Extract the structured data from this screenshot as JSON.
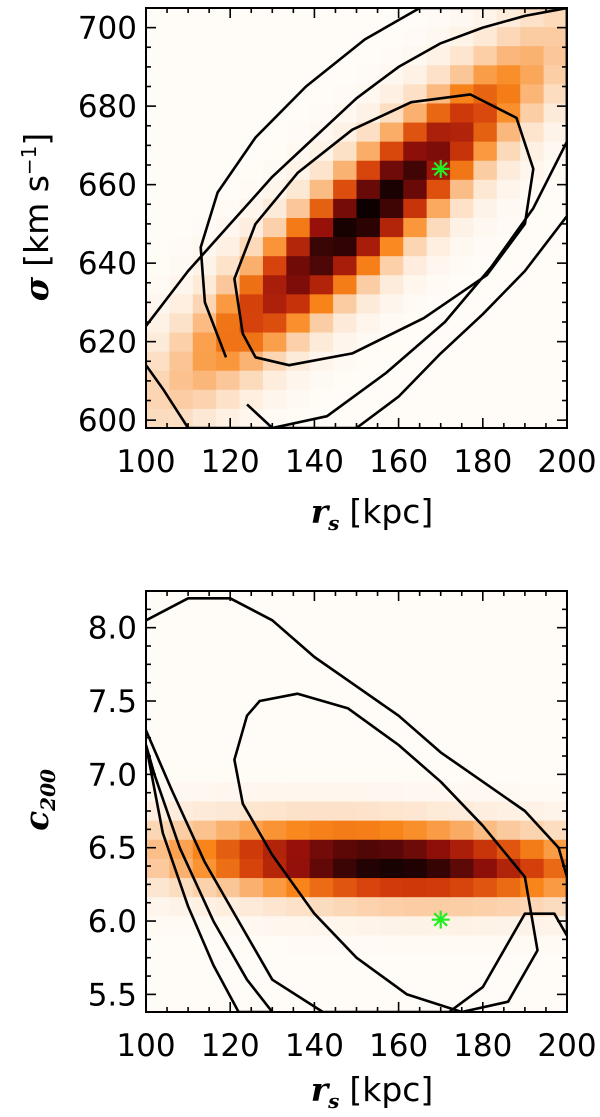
{
  "chart_data": [
    {
      "type": "heatmap",
      "id": "sigma-vs-rs",
      "description": "Likelihood map with 1, 2 and 3 sigma contours",
      "xlabel_main": "r",
      "xlabel_sub": "s",
      "xlabel_unit": "[kpc]",
      "ylabel_main": "σ",
      "ylabel_unit": "[km s",
      "ylabel_sup": "−1",
      "ylabel_close": "]",
      "xlim": [
        100,
        200
      ],
      "ylim": [
        598,
        705
      ],
      "xticks": [
        100,
        120,
        140,
        160,
        180,
        200
      ],
      "xtick_labels": [
        "100",
        "120",
        "140",
        "160",
        "180",
        "200"
      ],
      "yticks": [
        600,
        620,
        640,
        660,
        680,
        700
      ],
      "ytick_labels": [
        "600",
        "620",
        "640",
        "660",
        "680",
        "700"
      ],
      "peak": [
        152,
        652
      ],
      "axis_a": 55,
      "axis_b": 12,
      "tilt": 0.92,
      "marker": {
        "x": 170,
        "y": 664,
        "color": "#22ee22",
        "symbol": "asterisk"
      },
      "contours": [
        [
          [
            100,
            624
          ],
          [
            110,
            638
          ],
          [
            120,
            650
          ],
          [
            130,
            662
          ],
          [
            140,
            672
          ],
          [
            150,
            682
          ],
          [
            160,
            690
          ],
          [
            170,
            696
          ],
          [
            180,
            700
          ],
          [
            190,
            703
          ],
          [
            200,
            705
          ],
          [
            200,
            652
          ],
          [
            190,
            638
          ],
          [
            180,
            627
          ],
          [
            170,
            617
          ],
          [
            160,
            606
          ],
          [
            150,
            598
          ],
          [
            110,
            598
          ],
          [
            104,
            608
          ],
          [
            100,
            614
          ]
        ],
        [
          [
            119,
            616
          ],
          [
            114,
            630
          ],
          [
            113,
            644
          ],
          [
            117,
            658
          ],
          [
            126,
            672
          ],
          [
            138,
            685
          ],
          [
            152,
            697
          ],
          [
            165,
            705
          ],
          [
            200,
            705
          ],
          [
            200,
            671
          ],
          [
            192,
            654
          ],
          [
            182,
            639
          ],
          [
            171,
            625
          ],
          [
            157,
            612
          ],
          [
            143,
            601
          ],
          [
            130,
            598
          ],
          [
            124,
            604
          ]
        ],
        [
          [
            123,
            622
          ],
          [
            121,
            636
          ],
          [
            126,
            650
          ],
          [
            136,
            663
          ],
          [
            149,
            674
          ],
          [
            163,
            681
          ],
          [
            177,
            683
          ],
          [
            188,
            677
          ],
          [
            192,
            664
          ],
          [
            190,
            650
          ],
          [
            181,
            637
          ],
          [
            166,
            626
          ],
          [
            149,
            617
          ],
          [
            134,
            614
          ],
          [
            126,
            616
          ]
        ]
      ]
    },
    {
      "type": "heatmap",
      "id": "c200-vs-rs",
      "description": "Likelihood map with 1, 2 and 3 sigma contours",
      "xlabel_main": "r",
      "xlabel_sub": "s",
      "xlabel_unit": "[kpc]",
      "ylabel_main": "c",
      "ylabel_sub": "200",
      "xlim": [
        100,
        200
      ],
      "ylim": [
        5.38,
        8.25
      ],
      "xticks": [
        100,
        120,
        140,
        160,
        180,
        200
      ],
      "xtick_labels": [
        "100",
        "120",
        "140",
        "160",
        "180",
        "200"
      ],
      "yticks": [
        5.5,
        6.0,
        6.5,
        7.0,
        7.5,
        8.0
      ],
      "ytick_labels": [
        "5.5",
        "6.0",
        "6.5",
        "7.0",
        "7.5",
        "8.0"
      ],
      "peak": [
        157,
        6.4
      ],
      "axis_a": 52,
      "axis_b": 0.26,
      "tilt": -0.038,
      "marker": {
        "x": 170,
        "y": 6.01,
        "color": "#22ee22",
        "symbol": "asterisk"
      },
      "contours": [
        [
          [
            100,
            7.2
          ],
          [
            104,
            6.6
          ],
          [
            110,
            6.1
          ],
          [
            116,
            5.7
          ],
          [
            122,
            5.38
          ],
          [
            130,
            5.38
          ],
          [
            124,
            5.6
          ],
          [
            116,
            6.0
          ],
          [
            108,
            6.5
          ],
          [
            102,
            7.0
          ],
          [
            100,
            7.2
          ]
        ],
        [
          [
            100,
            8.05
          ],
          [
            110,
            8.2
          ],
          [
            120,
            8.2
          ],
          [
            130,
            8.05
          ],
          [
            140,
            7.8
          ],
          [
            150,
            7.6
          ],
          [
            160,
            7.4
          ],
          [
            170,
            7.15
          ],
          [
            180,
            6.95
          ],
          [
            190,
            6.75
          ],
          [
            198,
            6.5
          ],
          [
            200,
            6.3
          ],
          [
            200,
            5.9
          ],
          [
            197,
            6.05
          ],
          [
            190,
            6.05
          ],
          [
            180,
            5.55
          ],
          [
            172,
            5.38
          ],
          [
            160,
            5.38
          ],
          [
            150,
            5.38
          ],
          [
            142,
            5.38
          ],
          [
            130,
            5.6
          ],
          [
            122,
            6.0
          ],
          [
            114,
            6.4
          ],
          [
            106,
            6.9
          ],
          [
            100,
            7.3
          ]
        ],
        [
          [
            124,
            7.4
          ],
          [
            121,
            7.1
          ],
          [
            123,
            6.8
          ],
          [
            130,
            6.45
          ],
          [
            140,
            6.05
          ],
          [
            150,
            5.75
          ],
          [
            162,
            5.5
          ],
          [
            175,
            5.38
          ],
          [
            186,
            5.45
          ],
          [
            193,
            5.8
          ],
          [
            190,
            6.3
          ],
          [
            180,
            6.65
          ],
          [
            170,
            6.95
          ],
          [
            160,
            7.2
          ],
          [
            148,
            7.45
          ],
          [
            136,
            7.55
          ],
          [
            127,
            7.5
          ]
        ]
      ]
    }
  ]
}
